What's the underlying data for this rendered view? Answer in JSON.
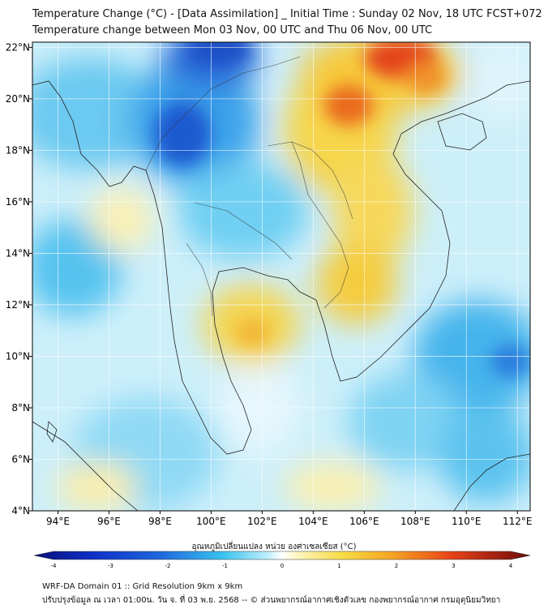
{
  "header": {
    "title_line1": "Temperature Change (°C) - [Data Assimilation] _ Initial Time : Sunday 02 Nov, 18 UTC FCST+072",
    "title_line2": "Temperature change between Mon 03 Nov, 00 UTC and Thu 06 Nov, 00 UTC"
  },
  "map": {
    "lon_ticks": [
      "94°E",
      "96°E",
      "98°E",
      "100°E",
      "102°E",
      "104°E",
      "106°E",
      "108°E",
      "110°E",
      "112°E"
    ],
    "lat_ticks": [
      "22°N",
      "20°N",
      "18°N",
      "16°N",
      "14°N",
      "12°N",
      "10°N",
      "8°N",
      "6°N",
      "4°N"
    ],
    "lon_range": [
      93,
      112.5
    ],
    "lat_range": [
      4,
      22.2
    ],
    "colors": {
      "cold": "#1e64dc",
      "cool": "#39c3f0",
      "neutral": "#ffffff",
      "warm": "#f2d13c",
      "hot": "#e8461e",
      "ocean_tint": "#cdeffa"
    }
  },
  "colorbar": {
    "label": "อุณหภูมิเปลี่ยนแปลง หน่วย องศาเซลเซียส (°C)",
    "ticks": [
      "-4",
      "-3",
      "-2",
      "-1",
      "0",
      "1",
      "2",
      "3",
      "4"
    ],
    "min": -4,
    "max": 4
  },
  "footer": {
    "line1": "WRF-DA Domain 01 :: Grid Resolution 9km x 9km",
    "line2": "ปรับปรุงข้อมูล ณ เวลา 01:00น. วัน จ. ที่ 03 พ.ย. 2568 -- © ส่วนพยากรณ์อากาศเชิงตัวเลข กองพยากรณ์อากาศ กรมอุตุนิยมวิทยา"
  }
}
